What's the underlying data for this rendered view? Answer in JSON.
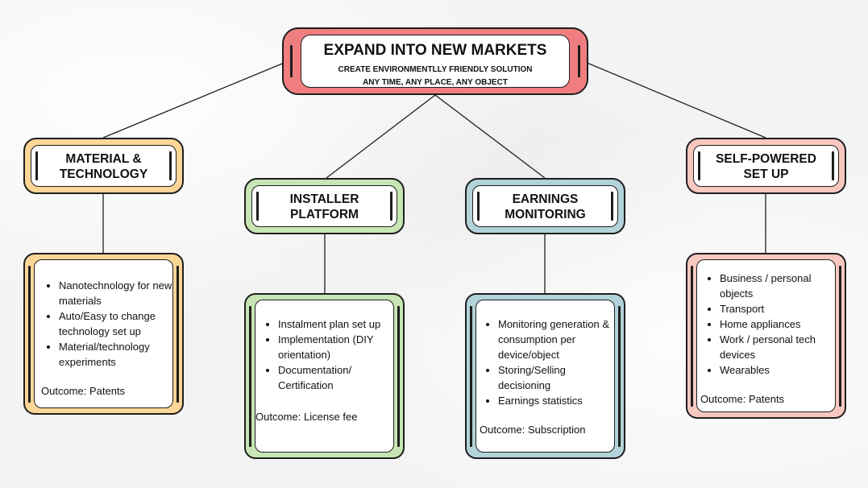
{
  "root": {
    "title": "EXPAND INTO NEW MARKETS",
    "subtitle_line1": "CREATE ENVIRONMENTLLY FRIENDLY SOLUTION",
    "subtitle_line2": "ANY TIME, ANY PLACE, ANY OBJECT"
  },
  "branches": [
    {
      "title_line1": "MATERIAL &",
      "title_line2": "TECHNOLOGY",
      "items": [
        "Nanotechnology for new materials",
        "Auto/Easy to change technology set up",
        "Material/technology experiments"
      ],
      "outcome": "Outcome: Patents"
    },
    {
      "title_line1": "INSTALLER",
      "title_line2": "PLATFORM",
      "items": [
        "Instalment plan set up",
        "Implementation (DIY orientation)",
        "Documentation/ Certification"
      ],
      "outcome": "Outcome: License fee"
    },
    {
      "title_line1": "EARNINGS",
      "title_line2": "MONITORING",
      "items": [
        "Monitoring generation & consumption per device/object",
        "Storing/Selling decisioning",
        "Earnings statistics"
      ],
      "outcome": "Outcome: Subscription"
    },
    {
      "title_line1": "SELF-POWERED",
      "title_line2": "SET UP",
      "items": [
        "Business / personal objects",
        "Transport",
        "Home appliances",
        "Work / personal tech devices",
        "Wearables"
      ],
      "outcome": "Outcome: Patents"
    }
  ],
  "colors": {
    "root": "#f07e80",
    "material": "#fcd697",
    "installer": "#c7e6b4",
    "earnings": "#b2d3d9",
    "selfpowered": "#f8c8c0"
  }
}
